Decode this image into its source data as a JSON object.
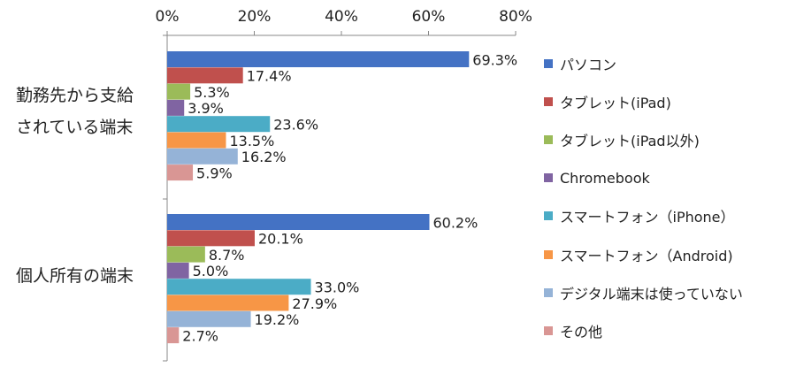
{
  "chart_data": {
    "type": "bar",
    "orientation": "horizontal",
    "categories": [
      "勤務先から支給\nされている端末",
      "個人所有の端末"
    ],
    "series": [
      {
        "name": "パソコン",
        "color": "#4472C4",
        "values": [
          69.3,
          60.2
        ]
      },
      {
        "name": "タブレット(iPad)",
        "color": "#C0504D",
        "values": [
          17.4,
          20.1
        ]
      },
      {
        "name": "タブレット(iPad以外)",
        "color": "#9BBB59",
        "values": [
          5.3,
          8.7
        ]
      },
      {
        "name": "Chromebook",
        "color": "#8064A2",
        "values": [
          3.9,
          5.0
        ]
      },
      {
        "name": "スマートフォン（iPhone）",
        "color": "#4BACC6",
        "values": [
          23.6,
          33.0
        ]
      },
      {
        "name": "スマートフォン（Android)",
        "color": "#F79646",
        "values": [
          13.5,
          27.9
        ]
      },
      {
        "name": "デジタル端末は使っていない",
        "color": "#95B3D7",
        "values": [
          16.2,
          19.2
        ]
      },
      {
        "name": "その他",
        "color": "#D99694",
        "values": [
          5.9,
          2.7
        ]
      }
    ],
    "xlim": [
      0,
      80
    ],
    "xticks": [
      0,
      20,
      40,
      60,
      80
    ],
    "tick_suffix": "%",
    "value_suffix": "%",
    "axis_position": "top",
    "grid": false,
    "legend_position": "right"
  },
  "category_labels": [
    [
      "勤務先から支給",
      "されている端末"
    ],
    [
      "個人所有の端末"
    ]
  ]
}
